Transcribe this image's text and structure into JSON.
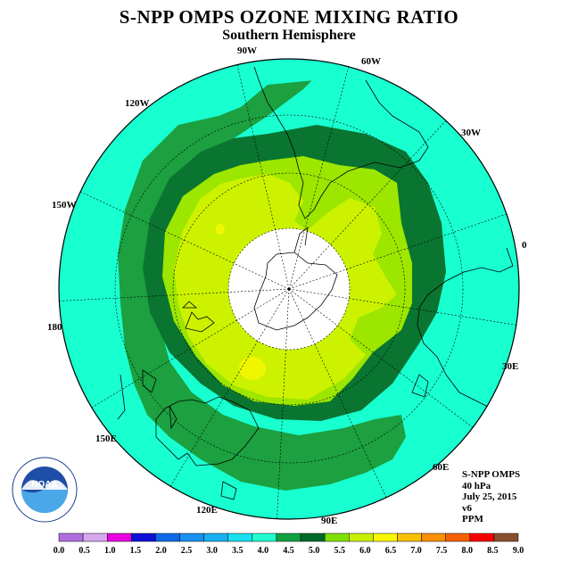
{
  "title": "S-NPP OMPS OZONE MIXING RATIO",
  "subtitle": "Southern Hemisphere",
  "longitude_labels": [
    "90W",
    "60W",
    "30W",
    "0",
    "30E",
    "60E",
    "90E",
    "120E",
    "150E",
    "180",
    "150W",
    "120W"
  ],
  "info": {
    "instrument": "S-NPP OMPS",
    "level": "40 hPa",
    "date": "July 25, 2015",
    "version": "v6",
    "units": "PPM"
  },
  "logo": {
    "text": "NOAA",
    "ring_text": "NATIONAL OCEANIC AND ATMOSPHERIC ADMINISTRATION · U.S. DEPARTMENT OF COMMERCE"
  },
  "colorbar": {
    "ticks": [
      "0.0",
      "0.5",
      "1.0",
      "1.5",
      "2.0",
      "2.5",
      "3.0",
      "3.5",
      "4.0",
      "4.5",
      "5.0",
      "5.5",
      "6.0",
      "6.5",
      "7.0",
      "7.5",
      "8.0",
      "8.5",
      "9.0"
    ],
    "colors": [
      "#b06de0",
      "#d8a8ee",
      "#e800e0",
      "#1010d8",
      "#1068e8",
      "#1890f0",
      "#18b0f0",
      "#18e0f0",
      "#20ffd0",
      "#10a040",
      "#006a28",
      "#80e000",
      "#c8f000",
      "#f8f800",
      "#f8c000",
      "#f89000",
      "#f86000",
      "#f80000",
      "#885030"
    ]
  },
  "map_colors": {
    "band_3_5_4_0": "#18ffd0",
    "band_4_0_4_5": "#1ca040",
    "band_4_5_5_0": "#0a7530",
    "band_5_0_5_5": "#9ce600",
    "band_5_5_6_0": "#ccf200",
    "band_6_0_6_5": "#f0f600",
    "no_data": "#ffffff"
  }
}
